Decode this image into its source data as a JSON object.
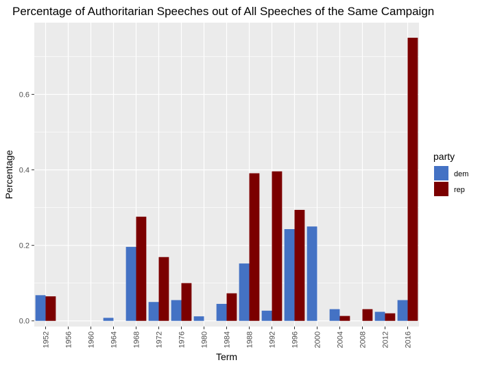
{
  "chart_data": {
    "type": "bar",
    "title": "Percentage of Authoritarian Speeches out of All Speeches of the Same Campaign",
    "xlabel": "Term",
    "ylabel": "Percentage",
    "categories": [
      "1952",
      "1956",
      "1960",
      "1964",
      "1968",
      "1972",
      "1976",
      "1980",
      "1984",
      "1988",
      "1992",
      "1996",
      "2000",
      "2004",
      "2008",
      "2012",
      "2016"
    ],
    "y_ticks": [
      "0.0",
      "0.2",
      "0.4",
      "0.6"
    ],
    "ylim": [
      -0.015,
      0.79
    ],
    "grid": true,
    "legend": {
      "title": "party",
      "placement": "right"
    },
    "series": [
      {
        "name": "dem",
        "color": "#4472C4",
        "values": [
          0.068,
          0,
          0,
          0.008,
          0.196,
          0.05,
          0.055,
          0.012,
          0.045,
          0.152,
          0.027,
          0.243,
          0.25,
          0.031,
          0,
          0.024,
          0.055
        ]
      },
      {
        "name": "rep",
        "color": "#7B0000",
        "values": [
          0.065,
          0,
          0,
          0,
          0.276,
          0.169,
          0.1,
          0,
          0.073,
          0.391,
          0.396,
          0.294,
          0,
          0.013,
          0.031,
          0.02,
          0.75
        ]
      }
    ]
  }
}
